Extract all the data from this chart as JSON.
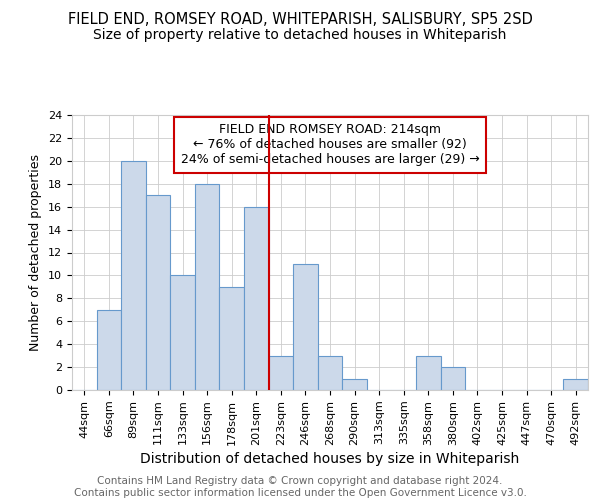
{
  "title1": "FIELD END, ROMSEY ROAD, WHITEPARISH, SALISBURY, SP5 2SD",
  "title2": "Size of property relative to detached houses in Whiteparish",
  "xlabel": "Distribution of detached houses by size in Whiteparish",
  "ylabel": "Number of detached properties",
  "categories": [
    "44sqm",
    "66sqm",
    "89sqm",
    "111sqm",
    "133sqm",
    "156sqm",
    "178sqm",
    "201sqm",
    "223sqm",
    "246sqm",
    "268sqm",
    "290sqm",
    "313sqm",
    "335sqm",
    "358sqm",
    "380sqm",
    "402sqm",
    "425sqm",
    "447sqm",
    "470sqm",
    "492sqm"
  ],
  "values": [
    0,
    7,
    20,
    17,
    10,
    18,
    9,
    16,
    3,
    11,
    3,
    1,
    0,
    0,
    3,
    2,
    0,
    0,
    0,
    0,
    1
  ],
  "bar_color": "#ccd9ea",
  "bar_edge_color": "#6699cc",
  "grid_color": "#cccccc",
  "background_color": "#ffffff",
  "annotation_box_color": "#ffffff",
  "annotation_box_edge_color": "#cc0000",
  "annotation_text": "FIELD END ROMSEY ROAD: 214sqm\n← 76% of detached houses are smaller (92)\n24% of semi-detached houses are larger (29) →",
  "red_line_index": 8,
  "ylim": [
    0,
    24
  ],
  "ytick_step": 2,
  "footer_text": "Contains HM Land Registry data © Crown copyright and database right 2024.\nContains public sector information licensed under the Open Government Licence v3.0.",
  "title1_fontsize": 10.5,
  "title2_fontsize": 10,
  "xlabel_fontsize": 10,
  "ylabel_fontsize": 9,
  "tick_fontsize": 8,
  "annotation_fontsize": 9,
  "footer_fontsize": 7.5
}
